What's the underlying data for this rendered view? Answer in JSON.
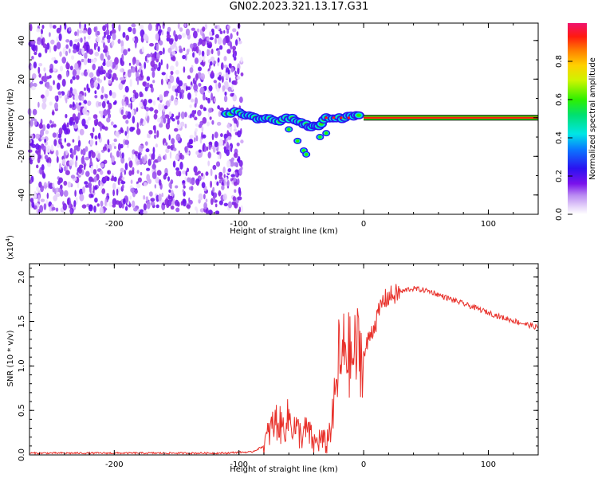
{
  "title": "GN02.2023.321.13.17.G31",
  "chart_data": [
    {
      "type": "heatmap",
      "xlabel": "Height of straight line (km)",
      "ylabel": "Frequency (Hz)",
      "xlim": [
        -268,
        140
      ],
      "ylim": [
        -50,
        49
      ],
      "x_ticks": [
        -200,
        -100,
        0,
        100
      ],
      "y_ticks": [
        -40,
        -20,
        0,
        20,
        40
      ],
      "colorbar": {
        "label": "Normalized spectral amplitude",
        "range": [
          0,
          1
        ],
        "ticks": [
          0.0,
          0.2,
          0.4,
          0.6,
          0.8
        ]
      },
      "regions": {
        "noise_x_range": [
          -268,
          -100
        ],
        "scatter_track": [
          [
            -110,
            2
          ],
          [
            -100,
            3
          ],
          [
            -92,
            1
          ],
          [
            -85,
            -1
          ],
          [
            -78,
            0
          ],
          [
            -70,
            -2
          ],
          [
            -62,
            0
          ],
          [
            -55,
            -1
          ],
          [
            -48,
            -3
          ],
          [
            -42,
            -5
          ],
          [
            -36,
            -4
          ],
          [
            -30,
            0
          ],
          [
            -22,
            0
          ],
          [
            -15,
            0
          ],
          [
            -8,
            1
          ],
          [
            -2,
            1
          ]
        ],
        "scatter_offshoots": [
          [
            -60,
            -6
          ],
          [
            -53,
            -12
          ],
          [
            -48,
            -17
          ],
          [
            -46,
            -19
          ],
          [
            -35,
            -10
          ],
          [
            -30,
            -8
          ]
        ],
        "carrier_line": {
          "x_range": [
            0,
            140
          ],
          "frequency": 0
        }
      }
    },
    {
      "type": "line",
      "xlabel": "Height of straight line (km)",
      "ylabel": "SNR (10 * v/v)",
      "y_multiplier": "(x10",
      "y_multiplier_exp": "4",
      "y_multiplier_close": ")",
      "xlim": [
        -268,
        140
      ],
      "ylim": [
        0,
        2.15
      ],
      "x_ticks": [
        -200,
        -100,
        0,
        100
      ],
      "y_ticks": [
        "0.0",
        "0.5",
        "1.0",
        "1.5",
        "2.0"
      ],
      "series": [
        {
          "color": "#e8302a",
          "x": [
            -268,
            -200,
            -150,
            -110,
            -100,
            -90,
            -80,
            -75,
            -70,
            -65,
            -60,
            -55,
            -50,
            -45,
            -40,
            -35,
            -30,
            -25,
            -22,
            -20,
            -18,
            -15,
            -10,
            -5,
            0,
            5,
            10,
            15,
            20,
            25,
            30,
            35,
            40,
            45,
            50,
            55,
            60,
            70,
            80,
            90,
            100,
            110,
            120,
            130,
            140
          ],
          "y": [
            0.02,
            0.02,
            0.02,
            0.02,
            0.03,
            0.03,
            0.1,
            0.28,
            0.38,
            0.3,
            0.42,
            0.3,
            0.22,
            0.28,
            0.12,
            0.18,
            0.12,
            0.4,
            0.75,
            1.1,
            0.95,
            1.25,
            1.05,
            1.2,
            1.1,
            1.35,
            1.5,
            1.72,
            1.78,
            1.8,
            1.83,
            1.86,
            1.87,
            1.86,
            1.85,
            1.83,
            1.8,
            1.75,
            1.7,
            1.65,
            1.6,
            1.55,
            1.51,
            1.47,
            1.43
          ]
        }
      ]
    }
  ]
}
